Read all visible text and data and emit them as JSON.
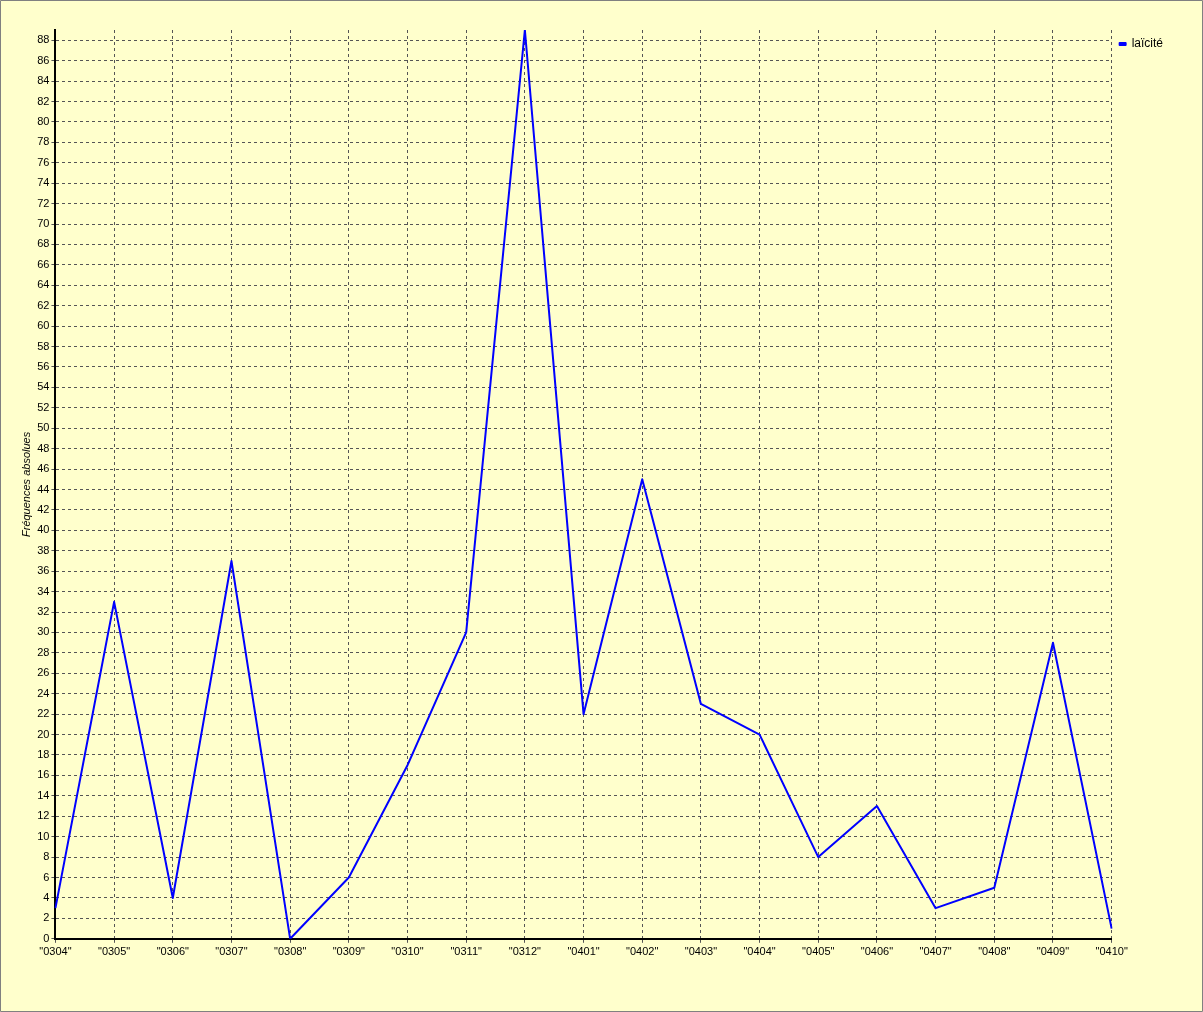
{
  "chart_data": {
    "type": "line",
    "ylabel": "Fréquences absolues",
    "categories": [
      "\"0304\"",
      "\"0305\"",
      "\"0306\"",
      "\"0307\"",
      "\"0308\"",
      "\"0309\"",
      "\"0310\"",
      "\"0311\"",
      "\"0312\"",
      "\"0401\"",
      "\"0402\"",
      "\"0403\"",
      "\"0404\"",
      "\"0405\"",
      "\"0406\"",
      "\"0407\"",
      "\"0408\"",
      "\"0409\"",
      "\"0410\""
    ],
    "series": [
      {
        "name": "laïcité",
        "color": "#0000ff",
        "values": [
          3,
          33,
          4,
          37,
          0,
          6,
          17,
          30,
          89,
          22,
          45,
          23,
          20,
          8,
          13,
          3,
          5,
          29,
          1
        ]
      }
    ],
    "ylim": [
      0,
      89
    ],
    "yticks": [
      0,
      2,
      4,
      6,
      8,
      10,
      12,
      14,
      16,
      18,
      20,
      22,
      24,
      26,
      28,
      30,
      32,
      34,
      36,
      38,
      40,
      42,
      44,
      46,
      48,
      50,
      52,
      54,
      56,
      58,
      60,
      62,
      64,
      66,
      68,
      70,
      72,
      74,
      76,
      78,
      80,
      82,
      84,
      86,
      88
    ],
    "grid": true,
    "legend": "top right",
    "marker": "none",
    "line_style": "solid"
  }
}
